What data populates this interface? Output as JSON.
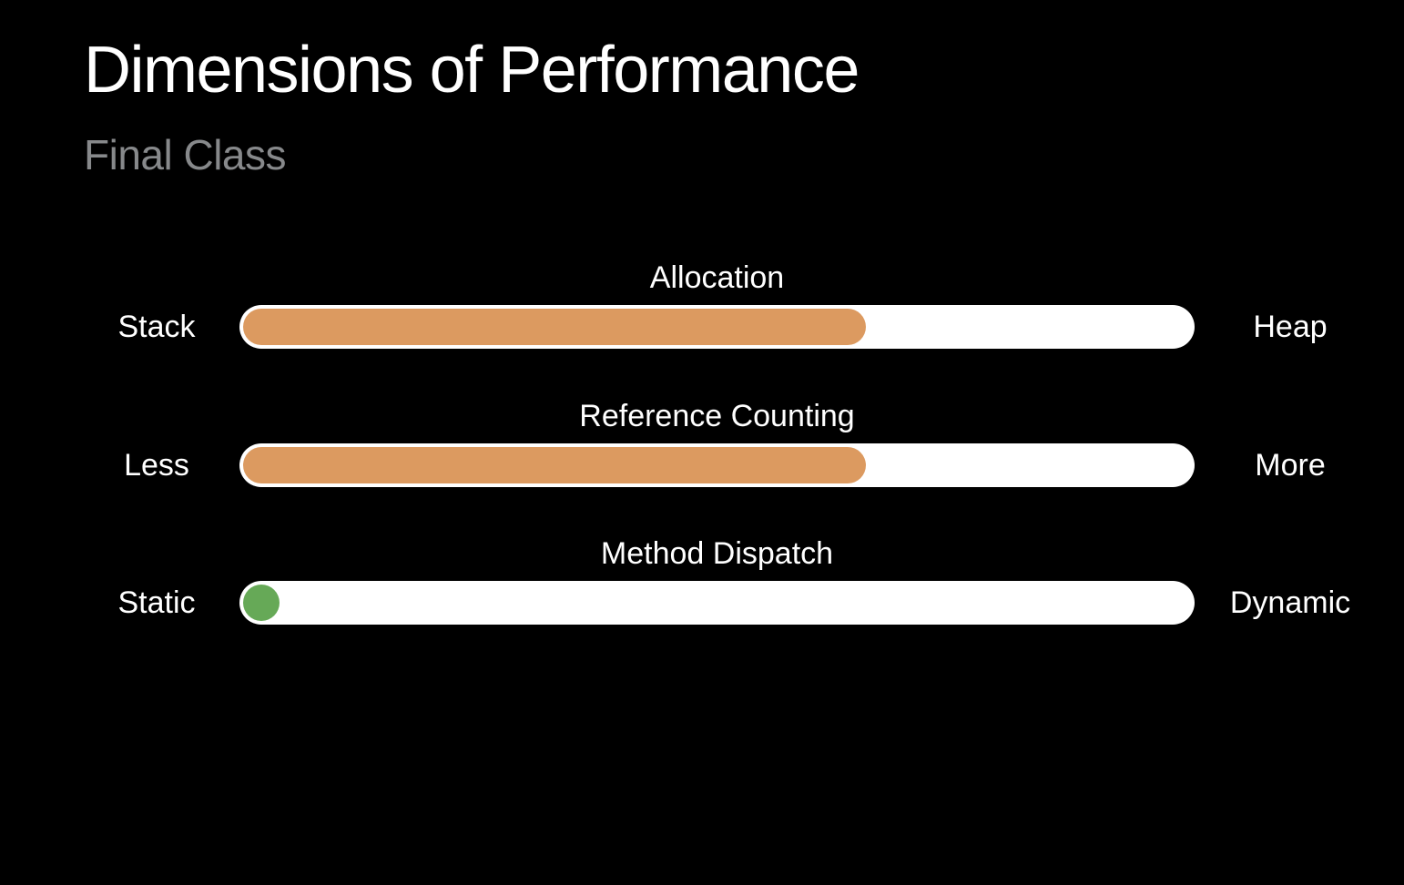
{
  "slide": {
    "title": "Dimensions of Performance",
    "subtitle": "Final Class"
  },
  "colors": {
    "background": "#000000",
    "track": "#FFFFFF",
    "orange": "#DC9A60",
    "green": "#66A957",
    "title_text": "#FFFFFF",
    "subtitle_text": "#87898B",
    "label_text": "#FFFFFF"
  },
  "sliders": [
    {
      "title": "Allocation",
      "left_label": "Stack",
      "right_label": "Heap",
      "indicator": "bar",
      "fill_percent": 66,
      "color": "#DC9A60"
    },
    {
      "title": "Reference Counting",
      "left_label": "Less",
      "right_label": "More",
      "indicator": "bar",
      "fill_percent": 66,
      "color": "#DC9A60"
    },
    {
      "title": "Method Dispatch",
      "left_label": "Static",
      "right_label": "Dynamic",
      "indicator": "dot",
      "position_percent": 0,
      "color": "#66A957"
    }
  ]
}
